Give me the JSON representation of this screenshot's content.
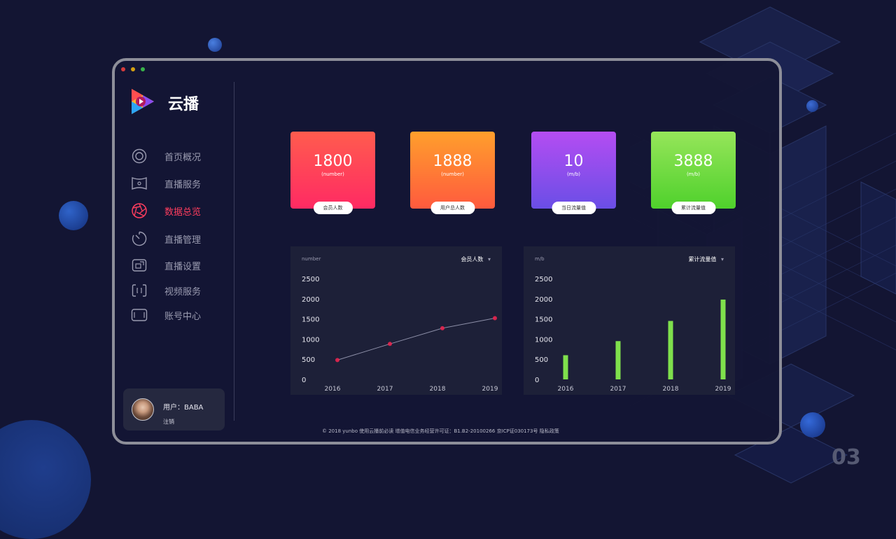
{
  "app": {
    "name": "云播"
  },
  "slide_number": "03",
  "window_dots": [
    "#d53c3c",
    "#d4a012",
    "#38b24a"
  ],
  "nav": [
    {
      "id": "home",
      "label": "首页概况",
      "icon": "target-icon",
      "active": false
    },
    {
      "id": "live-service",
      "label": "直播服务",
      "icon": "screen-icon",
      "active": false
    },
    {
      "id": "data-overview",
      "label": "数据总览",
      "icon": "aperture-icon",
      "active": true
    },
    {
      "id": "live-manage",
      "label": "直播管理",
      "icon": "timer-icon",
      "active": false
    },
    {
      "id": "live-settings",
      "label": "直播设置",
      "icon": "external-window-icon",
      "active": false
    },
    {
      "id": "video-service",
      "label": "视频服务",
      "icon": "scan-frame-icon",
      "active": false
    },
    {
      "id": "account",
      "label": "账号中心",
      "icon": "account-frame-icon",
      "active": false
    }
  ],
  "user": {
    "name_label": "用户：BABA",
    "logout_label": "注销"
  },
  "stats": [
    {
      "value": "1800",
      "unit": "(number)",
      "tag": "会员人数",
      "gradient": [
        "#ff5c4e",
        "#ff2a63"
      ]
    },
    {
      "value": "1888",
      "unit": "(number)",
      "tag": "用户总人数",
      "gradient": [
        "#ff9f2c",
        "#ff5a3e"
      ]
    },
    {
      "value": "10",
      "unit": "(m/b)",
      "tag": "当日流量值",
      "gradient": [
        "#b44df2",
        "#6a4ee6"
      ]
    },
    {
      "value": "3888",
      "unit": "(m/b)",
      "tag": "累计流量值",
      "gradient": [
        "#96e55a",
        "#4fd12c"
      ]
    }
  ],
  "charts": {
    "line": {
      "unit_label": "number",
      "selector": "会员人数",
      "selector_icon": "caret-down-icon"
    },
    "bar": {
      "unit_label": "m/b",
      "selector": "累计流量值",
      "selector_icon": "caret-down-icon"
    }
  },
  "chart_data": [
    {
      "type": "line",
      "categories": [
        "2016",
        "2017",
        "2018",
        "2019"
      ],
      "series": [
        {
          "values": [
            480,
            880,
            1270,
            1520
          ]
        }
      ],
      "ylim": [
        0,
        2500
      ],
      "yticks": [
        "0",
        "500",
        "1000",
        "1500",
        "2000",
        "2500"
      ],
      "ylabel": "number",
      "color": "#e8254f"
    },
    {
      "type": "bar",
      "categories": [
        "2016",
        "2017",
        "2018",
        "2019"
      ],
      "series": [
        {
          "values": [
            600,
            950,
            1450,
            1980
          ]
        }
      ],
      "ylim": [
        0,
        2500
      ],
      "yticks": [
        "0",
        "500",
        "1000",
        "1500",
        "2000",
        "2500"
      ],
      "ylabel": "m/b",
      "color": "#7fe04c"
    }
  ],
  "footer": "© 2018 yunbo 使用云播前必读   增值电信业务经营许可证：B1.B2-20100266   京ICP证030173号   隐私政策"
}
